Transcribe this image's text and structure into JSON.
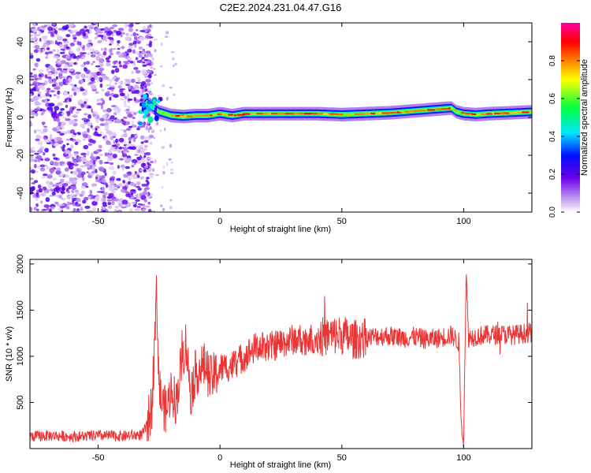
{
  "figure": {
    "title": "C2E2.2024.231.04.47.G16"
  },
  "chart_data": [
    {
      "type": "heatmap",
      "xlabel": "Height of straight line (km)",
      "ylabel": "Frequency (Hz)",
      "xlim": [
        -78,
        128
      ],
      "ylim": [
        -50,
        50
      ],
      "xticks": [
        -50,
        0,
        50,
        100
      ],
      "yticks": [
        -40,
        -20,
        0,
        20,
        40
      ],
      "tick_labels_x": [
        "-50",
        "0",
        "50",
        "100"
      ],
      "tick_labels_y": [
        "-40",
        "-20",
        "0",
        "20",
        "40"
      ],
      "colorbar": {
        "label": "Normalized spectral amplitude",
        "range": [
          0.0,
          1.0
        ],
        "ticks": [
          0.0,
          0.2,
          0.4,
          0.6,
          0.8
        ],
        "tick_labels": [
          "0.0",
          "0.2",
          "0.4",
          "0.6",
          "0.8"
        ],
        "colormap": [
          "#ffffff",
          "#c8a8f0",
          "#6a00e8",
          "#0010ff",
          "#00e8ff",
          "#00ff40",
          "#ffff00",
          "#ff8000",
          "#ff0000",
          "#ff00a0"
        ]
      },
      "noise_region_x": [
        -78,
        -30
      ],
      "signal_trace": {
        "x": [
          -32,
          -30,
          -28,
          -25,
          -20,
          -15,
          -10,
          -5,
          0,
          5,
          10,
          20,
          30,
          40,
          50,
          60,
          70,
          80,
          90,
          95,
          97,
          100,
          105,
          110,
          120,
          128
        ],
        "y": [
          5,
          8,
          6,
          3,
          1,
          0.5,
          1,
          1,
          2,
          1,
          2,
          2,
          2,
          2,
          1.5,
          2,
          2.5,
          3.5,
          4.5,
          5,
          3,
          2,
          1.5,
          2,
          2.5,
          3
        ]
      },
      "grid": false
    },
    {
      "type": "line",
      "xlabel": "Height of straight line (km)",
      "ylabel": "SNR (10 * v/v)",
      "xlim": [
        -78,
        128
      ],
      "ylim": [
        0,
        2050
      ],
      "xticks": [
        -50,
        0,
        50,
        100
      ],
      "yticks": [
        500,
        1000,
        1500,
        2000
      ],
      "tick_labels_x": [
        "-50",
        "0",
        "50",
        "100"
      ],
      "tick_labels_y": [
        "500",
        "1000",
        "1500",
        "2000"
      ],
      "color": "#ee3333",
      "series": [
        {
          "x": [
            -78,
            -70,
            -60,
            -50,
            -40,
            -32,
            -30,
            -28,
            -26,
            -25,
            -24,
            -22,
            -20,
            -18,
            -16,
            -14,
            -12,
            -10,
            -8,
            -6,
            -4,
            -2,
            0,
            5,
            10,
            15,
            20,
            25,
            30,
            35,
            40,
            45,
            50,
            55,
            60,
            65,
            70,
            75,
            80,
            85,
            90,
            95,
            98,
            99,
            100,
            101,
            102,
            105,
            110,
            115,
            120,
            128
          ],
          "values": [
            130,
            140,
            130,
            140,
            135,
            150,
            250,
            450,
            1700,
            700,
            500,
            400,
            650,
            500,
            900,
            1150,
            600,
            820,
            870,
            900,
            750,
            800,
            870,
            900,
            1000,
            1100,
            1100,
            1140,
            1180,
            1180,
            1200,
            1220,
            1230,
            1180,
            1200,
            1220,
            1220,
            1200,
            1210,
            1180,
            1200,
            1230,
            1150,
            300,
            100,
            1900,
            1200,
            1220,
            1230,
            1240,
            1230,
            1260
          ]
        }
      ],
      "grid": false
    }
  ]
}
